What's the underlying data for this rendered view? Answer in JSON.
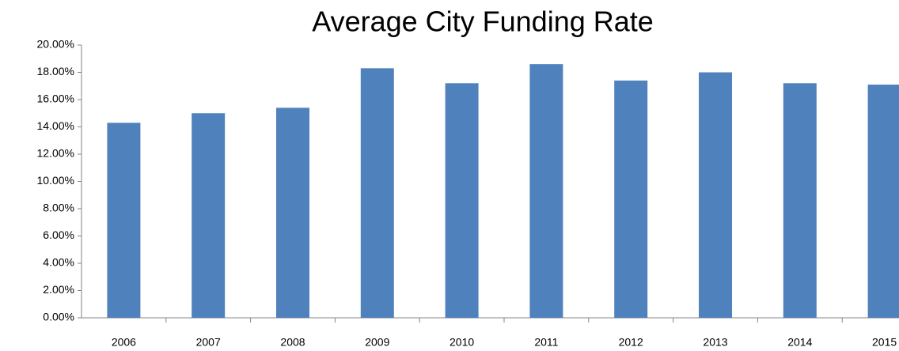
{
  "chart_data": {
    "type": "bar",
    "title": "Average City Funding Rate",
    "categories": [
      "2006",
      "2007",
      "2008",
      "2009",
      "2010",
      "2011",
      "2012",
      "2013",
      "2014",
      "2015"
    ],
    "values": [
      14.3,
      15.0,
      15.4,
      18.3,
      17.2,
      18.6,
      17.4,
      18.0,
      17.2,
      17.1
    ],
    "color": "#4f81bd",
    "ylim": [
      0,
      20
    ],
    "yticks": [
      {
        "value": 0,
        "label": "0.00%"
      },
      {
        "value": 2,
        "label": "2.00%"
      },
      {
        "value": 4,
        "label": "4.00%"
      },
      {
        "value": 6,
        "label": "6.00%"
      },
      {
        "value": 8,
        "label": "8.00%"
      },
      {
        "value": 10,
        "label": "10.00%"
      },
      {
        "value": 12,
        "label": "12.00%"
      },
      {
        "value": 14,
        "label": "14.00%"
      },
      {
        "value": 16,
        "label": "16.00%"
      },
      {
        "value": 18,
        "label": "18.00%"
      },
      {
        "value": 20,
        "label": "20.00%"
      }
    ],
    "grid": false
  }
}
